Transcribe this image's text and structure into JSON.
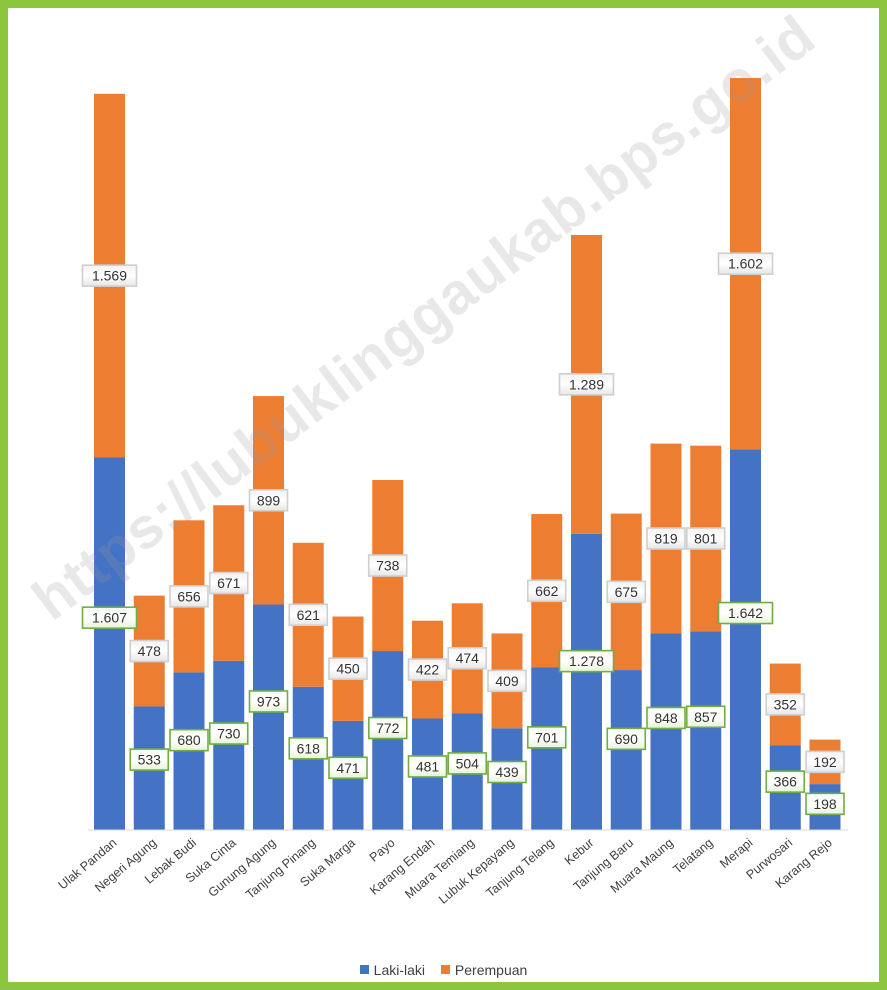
{
  "colors": {
    "border": "#8cc63f",
    "laki": "#4472c4",
    "perempuan": "#ed7d31"
  },
  "watermark": "https://lubuklinggaukab.bps.go.id",
  "legend": {
    "laki_label": "Laki-laki",
    "perempuan_label": "Perempuan"
  },
  "chart_data": {
    "type": "bar",
    "stacked": true,
    "categories": [
      "Ulak Pandan",
      "Negeri Agung",
      "Lebak Budi",
      "Suka Cinta",
      "Gunung Agung",
      "Tanjung Pinang",
      "Suka Marga",
      "Payo",
      "Karang Endah",
      "Muara Temiang",
      "Lubuk Kepayang",
      "Tanjung Telang",
      "Kebur",
      "Tanjung Baru",
      "Muara Maung",
      "Telatang",
      "Merapi",
      "Purwosari",
      "Karang Rejo"
    ],
    "series": [
      {
        "name": "Laki-laki",
        "values": [
          1607,
          533,
          680,
          730,
          973,
          618,
          471,
          772,
          481,
          504,
          439,
          701,
          1278,
          690,
          848,
          857,
          1642,
          366,
          198
        ],
        "labels": [
          "1.607",
          "533",
          "680",
          "730",
          "973",
          "618",
          "471",
          "772",
          "481",
          "504",
          "439",
          "701",
          "1.278",
          "690",
          "848",
          "857",
          "1.642",
          "366",
          "198"
        ]
      },
      {
        "name": "Perempuan",
        "values": [
          1569,
          478,
          656,
          671,
          899,
          621,
          450,
          738,
          422,
          474,
          409,
          662,
          1289,
          675,
          819,
          801,
          1602,
          352,
          192
        ],
        "labels": [
          "1.569",
          "478",
          "656",
          "671",
          "899",
          "621",
          "450",
          "738",
          "422",
          "474",
          "409",
          "662",
          "1.289",
          "675",
          "819",
          "801",
          "1.602",
          "352",
          "192"
        ]
      }
    ],
    "legend_position": "bottom",
    "grid": false
  }
}
